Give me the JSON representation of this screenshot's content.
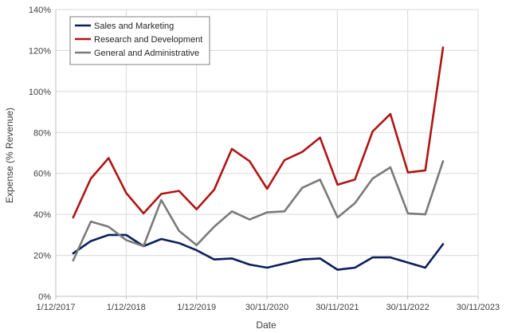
{
  "chart_data": {
    "type": "line",
    "title": "",
    "xlabel": "Date",
    "ylabel": "Expense (% Revenue)",
    "ylim": [
      0,
      140
    ],
    "yticks": [
      0,
      20,
      40,
      60,
      80,
      100,
      120,
      140
    ],
    "ytick_labels": [
      "0%",
      "20%",
      "40%",
      "60%",
      "80%",
      "100%",
      "120%",
      "140%"
    ],
    "xlim": [
      "2017-12-01",
      "2023-11-30"
    ],
    "xticks": [
      "2017-12-01",
      "2018-12-01",
      "2019-12-01",
      "2020-11-30",
      "2021-11-30",
      "2022-11-30",
      "2023-11-30"
    ],
    "xtick_labels": [
      "1/12/2017",
      "1/12/2018",
      "1/12/2019",
      "30/11/2020",
      "30/11/2021",
      "30/11/2022",
      "30/11/2023"
    ],
    "grid": true,
    "legend_position": "top-left",
    "x": [
      "2018-03-01",
      "2018-06-01",
      "2018-09-01",
      "2018-12-01",
      "2019-03-01",
      "2019-06-01",
      "2019-09-01",
      "2019-12-01",
      "2020-03-01",
      "2020-06-01",
      "2020-09-01",
      "2020-12-01",
      "2021-03-01",
      "2021-06-01",
      "2021-09-01",
      "2021-12-01",
      "2022-03-01",
      "2022-06-01",
      "2022-09-01",
      "2022-12-01",
      "2023-03-01",
      "2023-06-01"
    ],
    "series": [
      {
        "name": "Sales and Marketing",
        "color": "#0b1f5c",
        "values": [
          21,
          27,
          30,
          30,
          24.5,
          28,
          26,
          22.5,
          18,
          18.5,
          15.5,
          14,
          16,
          18,
          18.5,
          13,
          14,
          19,
          19,
          16.5,
          14,
          25.5
        ]
      },
      {
        "name": "Research and Development",
        "color": "#b01515",
        "values": [
          38.5,
          57.5,
          67.5,
          50.5,
          40.5,
          50,
          51.5,
          42.5,
          52,
          72,
          66,
          52.5,
          66.5,
          70.5,
          77.5,
          54.5,
          57,
          80.5,
          89,
          60.5,
          61.5,
          121.5
        ]
      },
      {
        "name": "General and Administrative",
        "color": "#7a7a7a",
        "values": [
          17.5,
          36.5,
          34,
          27.5,
          24.5,
          47,
          32,
          25,
          34,
          41.5,
          37.5,
          41,
          41.5,
          53,
          57,
          38.5,
          45.5,
          57.5,
          63,
          40.5,
          40,
          66
        ]
      }
    ]
  }
}
